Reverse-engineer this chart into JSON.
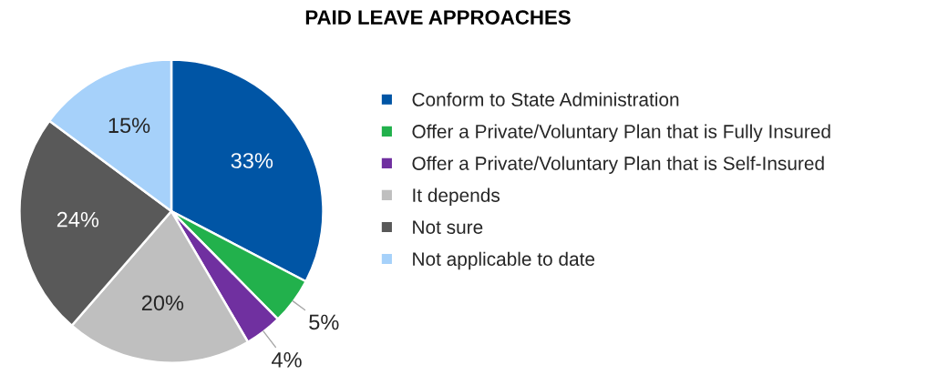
{
  "chart_data": {
    "type": "pie",
    "title": "PAID LEAVE APPROACHES",
    "categories": [
      "Conform to State Administration",
      "Offer a Private/Voluntary Plan that is Fully Insured",
      "Offer a Private/Voluntary Plan that is Self-Insured",
      "It depends",
      "Not sure",
      "Not applicable to date"
    ],
    "values": [
      33,
      5,
      4,
      20,
      24,
      15
    ],
    "colors": [
      "#0055a5",
      "#22b14c",
      "#7030a0",
      "#bfbfbf",
      "#595959",
      "#a6d1fa"
    ],
    "value_labels": [
      "33%",
      "5%",
      "4%",
      "20%",
      "24%",
      "15%"
    ],
    "legend": "right"
  }
}
